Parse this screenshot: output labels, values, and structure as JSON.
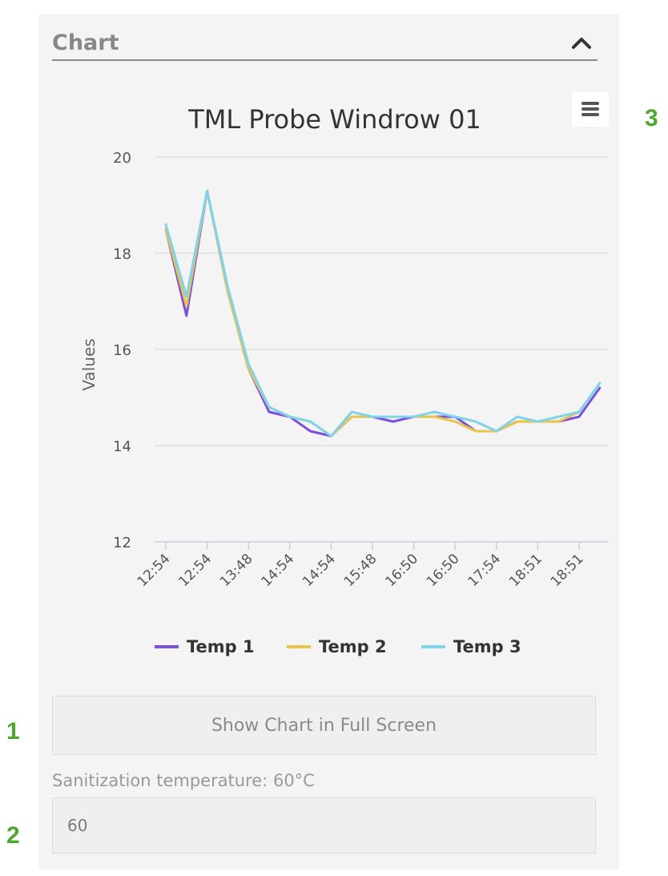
{
  "panel": {
    "title": "Chart"
  },
  "markers": {
    "m1": "1",
    "m2": "2",
    "m3": "3"
  },
  "buttons": {
    "fullscreen_label": "Show Chart in Full Screen"
  },
  "sanitization": {
    "label": "Sanitization temperature: 60°C",
    "value": "60"
  },
  "icons": {
    "collapse": "chevron-up-icon",
    "menu": "hamburger-menu-icon"
  },
  "colors": {
    "temp1": "#7b4fe0",
    "temp2": "#e8c44a",
    "temp3": "#7fd3ea",
    "marker": "#4ea72e"
  },
  "chart_data": {
    "type": "line",
    "title": "TML Probe Windrow 01",
    "ylabel": "Values",
    "xlabel": "",
    "ylim": [
      12,
      20
    ],
    "yticks": [
      12,
      14,
      16,
      18,
      20
    ],
    "grid": true,
    "legend_position": "bottom",
    "x": [
      "12:54",
      "",
      "12:54",
      "",
      "13:48",
      "",
      "14:54",
      "",
      "14:54",
      "",
      "15:48",
      "",
      "16:50",
      "",
      "16:50",
      "",
      "17:54",
      "",
      "18:51",
      "",
      "18:51",
      ""
    ],
    "xtick_labels": [
      "12:54",
      "12:54",
      "13:48",
      "14:54",
      "14:54",
      "15:48",
      "16:50",
      "16:50",
      "17:54",
      "18:51",
      "18:51"
    ],
    "series": [
      {
        "name": "Temp 1",
        "color": "#7b4fe0",
        "values": [
          18.5,
          16.7,
          19.3,
          17.2,
          15.6,
          14.7,
          14.6,
          14.3,
          14.2,
          14.6,
          14.6,
          14.5,
          14.6,
          14.6,
          14.6,
          14.3,
          14.3,
          14.5,
          14.5,
          14.5,
          14.6,
          15.2
        ]
      },
      {
        "name": "Temp 2",
        "color": "#e8c44a",
        "values": [
          18.5,
          16.9,
          19.3,
          17.2,
          15.6,
          14.8,
          14.6,
          14.5,
          14.2,
          14.6,
          14.6,
          14.6,
          14.6,
          14.6,
          14.5,
          14.3,
          14.3,
          14.5,
          14.5,
          14.5,
          14.7,
          15.3
        ]
      },
      {
        "name": "Temp 3",
        "color": "#7fd3ea",
        "values": [
          18.6,
          17.1,
          19.3,
          17.3,
          15.7,
          14.8,
          14.6,
          14.5,
          14.2,
          14.7,
          14.6,
          14.6,
          14.6,
          14.7,
          14.6,
          14.5,
          14.3,
          14.6,
          14.5,
          14.6,
          14.7,
          15.3
        ]
      }
    ]
  }
}
